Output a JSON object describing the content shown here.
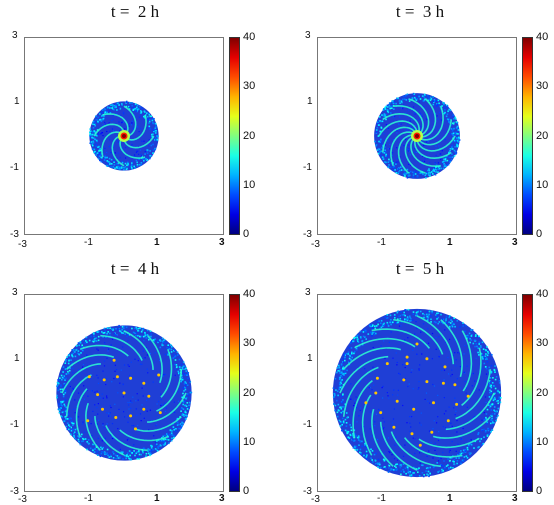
{
  "chart_data": [
    {
      "type": "heatmap",
      "title": "t =  2 h",
      "xlim": [
        -3,
        3
      ],
      "ylim": [
        -3,
        3
      ],
      "x_ticks": [
        "-3",
        "-1",
        "1",
        "3"
      ],
      "y_ticks": [
        "3",
        "1",
        "-1",
        "-3"
      ],
      "disk_radius": 1.05,
      "core_value": 40,
      "arms": 8,
      "spots": [],
      "colorbar": {
        "min": 0,
        "max": 40,
        "ticks": [
          "40",
          "30",
          "20",
          "10",
          "0"
        ]
      }
    },
    {
      "type": "heatmap",
      "title": "t =  3 h",
      "xlim": [
        -3,
        3
      ],
      "ylim": [
        -3,
        3
      ],
      "x_ticks": [
        "-3",
        "-1",
        "1",
        "3"
      ],
      "y_ticks": [
        "3",
        "1",
        "-1",
        "-3"
      ],
      "disk_radius": 1.3,
      "core_value": 40,
      "arms": 14,
      "spots": [],
      "colorbar": {
        "min": 0,
        "max": 40,
        "ticks": [
          "40",
          "30",
          "20",
          "10",
          "0"
        ]
      }
    },
    {
      "type": "heatmap",
      "title": "t =  4 h",
      "xlim": [
        -3,
        3
      ],
      "ylim": [
        -3,
        3
      ],
      "x_ticks": [
        "-3",
        "-1",
        "1",
        "3"
      ],
      "y_ticks": [
        "3",
        "1",
        "-1",
        "-3"
      ],
      "disk_radius": 2.05,
      "core_value": 0,
      "arms": 16,
      "spots": [
        {
          "x": -0.6,
          "y": 0.4
        },
        {
          "x": -0.2,
          "y": 0.5
        },
        {
          "x": 0.2,
          "y": 0.45
        },
        {
          "x": 0.6,
          "y": 0.3
        },
        {
          "x": 0.75,
          "y": -0.1
        },
        {
          "x": 0.6,
          "y": -0.5
        },
        {
          "x": 0.2,
          "y": -0.7
        },
        {
          "x": -0.25,
          "y": -0.75
        },
        {
          "x": -0.65,
          "y": -0.5
        },
        {
          "x": -0.8,
          "y": -0.05
        },
        {
          "x": -1.05,
          "y": 0.5
        },
        {
          "x": 1.05,
          "y": 0.55
        },
        {
          "x": 1.1,
          "y": -0.6
        },
        {
          "x": -1.1,
          "y": -0.85
        },
        {
          "x": -0.3,
          "y": 1.0
        },
        {
          "x": 0.35,
          "y": -1.1
        },
        {
          "x": 0.0,
          "y": 0.0
        }
      ],
      "colorbar": {
        "min": 0,
        "max": 40,
        "ticks": [
          "40",
          "30",
          "20",
          "10",
          "0"
        ]
      }
    },
    {
      "type": "heatmap",
      "title": "t =  5 h",
      "xlim": [
        -3,
        3
      ],
      "ylim": [
        -3,
        3
      ],
      "x_ticks": [
        "-3",
        "-1",
        "1",
        "3"
      ],
      "y_ticks": [
        "3",
        "1",
        "-1",
        "-3"
      ],
      "disk_radius": 2.55,
      "core_value": 0,
      "arms": 20,
      "spots": [
        {
          "x": -0.9,
          "y": 0.9
        },
        {
          "x": -0.3,
          "y": 1.1
        },
        {
          "x": 0.3,
          "y": 1.05
        },
        {
          "x": 0.85,
          "y": 0.8
        },
        {
          "x": 1.15,
          "y": 0.25
        },
        {
          "x": 1.2,
          "y": -0.35
        },
        {
          "x": 0.95,
          "y": -0.85
        },
        {
          "x": 0.45,
          "y": -1.2
        },
        {
          "x": -0.15,
          "y": -1.25
        },
        {
          "x": -0.7,
          "y": -1.05
        },
        {
          "x": -1.1,
          "y": -0.6
        },
        {
          "x": -1.25,
          "y": 0.0
        },
        {
          "x": -1.2,
          "y": 0.45
        },
        {
          "x": -0.4,
          "y": 0.4
        },
        {
          "x": 0.3,
          "y": 0.35
        },
        {
          "x": 0.5,
          "y": -0.3
        },
        {
          "x": -0.1,
          "y": -0.5
        },
        {
          "x": -0.6,
          "y": -0.25
        },
        {
          "x": 0.0,
          "y": 1.5
        },
        {
          "x": 1.55,
          "y": -0.1
        },
        {
          "x": -1.55,
          "y": -0.3
        },
        {
          "x": 0.1,
          "y": -1.6
        },
        {
          "x": -0.3,
          "y": 0.9
        },
        {
          "x": 0.8,
          "y": 0.3
        }
      ],
      "colorbar": {
        "min": 0,
        "max": 40,
        "ticks": [
          "40",
          "30",
          "20",
          "10",
          "0"
        ]
      }
    }
  ]
}
